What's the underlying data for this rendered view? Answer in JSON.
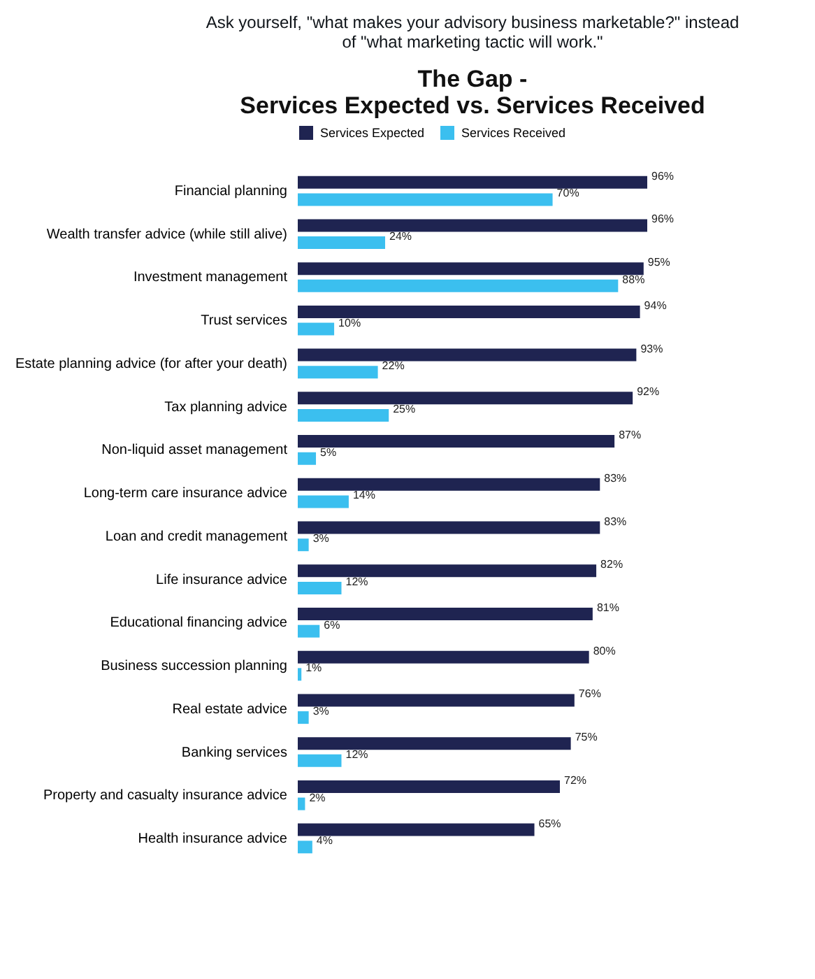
{
  "chart_data": {
    "type": "bar",
    "orientation": "horizontal",
    "title": "The Gap -\nServices Expected vs. Services Received",
    "annotations": [
      "Ask yourself, \"what makes your advisory business marketable?\" instead\nof \"what marketing tactic will work.\""
    ],
    "categories": [
      "Financial planning",
      "Wealth transfer advice (while still alive)",
      "Investment management",
      "Trust services",
      "Estate planning advice (for after your death)",
      "Tax planning advice",
      "Non-liquid asset management",
      "Long-term care insurance advice",
      "Loan and credit management",
      "Life insurance advice",
      "Educational financing advice",
      "Business succession planning",
      "Real estate advice",
      "Banking services",
      "Property and casualty insurance advice",
      "Health insurance advice"
    ],
    "series": [
      {
        "name": "Services Expected",
        "color": "#1f2451",
        "values": [
          96,
          96,
          95,
          94,
          93,
          92,
          87,
          83,
          83,
          82,
          81,
          80,
          76,
          75,
          72,
          65
        ],
        "value_labels": [
          "96%",
          "96%",
          "95%",
          "94%",
          "93%",
          "92%",
          "87%",
          "83%",
          "83%",
          "82%",
          "81%",
          "80%",
          "76%",
          "75%",
          "72%",
          "65%"
        ]
      },
      {
        "name": "Services Received",
        "color": "#3bbfef",
        "values": [
          70,
          24,
          88,
          10,
          22,
          25,
          5,
          14,
          3,
          12,
          6,
          1,
          3,
          12,
          2,
          4
        ],
        "value_labels": [
          "70%",
          "24%",
          "88%",
          "10%",
          "22%",
          "25%",
          "5%",
          "14%",
          "3%",
          "12%",
          "6%",
          "1%",
          "3%",
          "12%",
          "2%",
          "4%"
        ]
      }
    ],
    "legend": "top"
  }
}
